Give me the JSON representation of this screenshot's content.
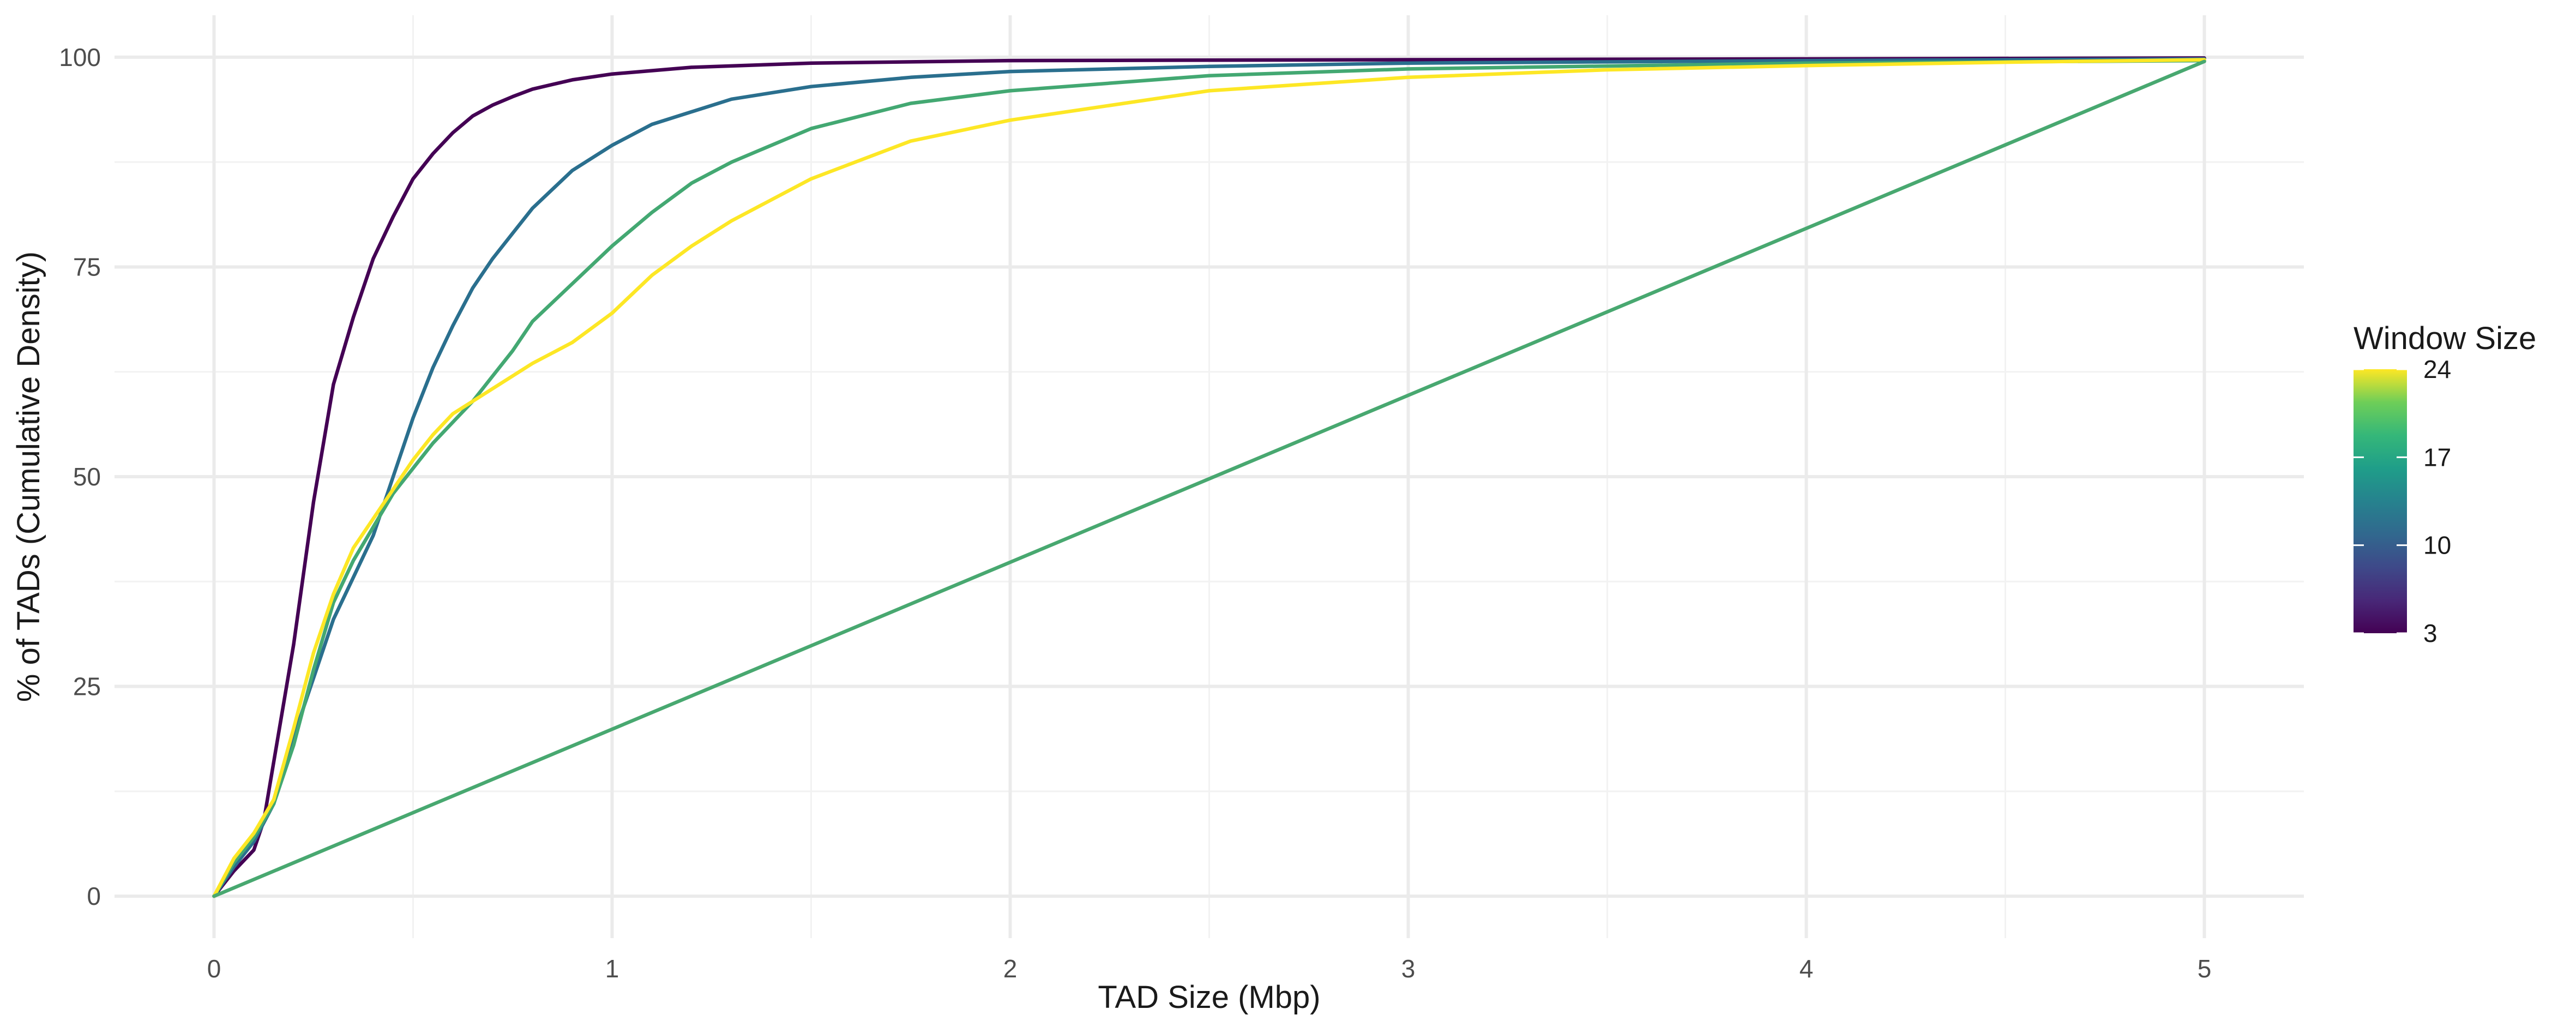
{
  "chart_data": {
    "type": "line",
    "xlabel": "TAD Size (Mbp)",
    "ylabel": "% of TADs (Cumulative Density)",
    "xlim": [
      -0.25,
      5.25
    ],
    "ylim": [
      -5,
      105
    ],
    "x_ticks": [
      0,
      1,
      2,
      3,
      4,
      5
    ],
    "y_ticks": [
      0,
      25,
      50,
      75,
      100
    ],
    "grid": true,
    "legend": {
      "title": "Window Size",
      "placement": "right",
      "type": "colorbar",
      "range": [
        3,
        24
      ],
      "ticks": [
        3,
        10,
        17,
        24
      ]
    },
    "series": [
      {
        "window": 3,
        "color": "#440154",
        "x": [
          0,
          0.05,
          0.1,
          0.125,
          0.15,
          0.2,
          0.25,
          0.3,
          0.35,
          0.4,
          0.45,
          0.5,
          0.55,
          0.6,
          0.65,
          0.7,
          0.75,
          0.8,
          0.9,
          1.0,
          1.2,
          1.5,
          2.0,
          3.0,
          4.0,
          5.0
        ],
        "y": [
          0,
          3,
          5.5,
          9,
          16,
          30,
          47,
          61,
          69,
          76,
          81,
          85.5,
          88.5,
          91,
          93,
          94.3,
          95.3,
          96.2,
          97.3,
          98,
          98.8,
          99.3,
          99.6,
          99.7,
          99.8,
          99.9
        ]
      },
      {
        "window": 10,
        "color": "#2a6f8e",
        "x": [
          0,
          0.05,
          0.1,
          0.15,
          0.2,
          0.25,
          0.3,
          0.35,
          0.4,
          0.45,
          0.5,
          0.55,
          0.6,
          0.65,
          0.7,
          0.75,
          0.8,
          0.9,
          1.0,
          1.1,
          1.2,
          1.3,
          1.5,
          1.75,
          2.0,
          2.5,
          3.0,
          4.0,
          5.0
        ],
        "y": [
          0,
          3.5,
          6.5,
          11,
          19,
          26,
          33,
          38,
          43,
          50,
          57,
          63,
          68,
          72.5,
          76,
          79,
          82,
          86.5,
          89.5,
          92,
          93.5,
          95,
          96.5,
          97.6,
          98.3,
          98.9,
          99.3,
          99.6,
          99.8
        ]
      },
      {
        "window": 17,
        "color": "#43a872",
        "x": [
          0,
          0.05,
          0.1,
          0.15,
          0.2,
          0.25,
          0.3,
          0.35,
          0.4,
          0.45,
          0.5,
          0.55,
          0.6,
          0.65,
          0.7,
          0.75,
          0.8,
          0.9,
          1.0,
          1.1,
          1.2,
          1.3,
          1.5,
          1.75,
          2.0,
          2.5,
          3.0,
          4.0,
          5.0
        ],
        "y": [
          0,
          4,
          7,
          11,
          18,
          27,
          35,
          40,
          44,
          48,
          51,
          54,
          56.5,
          59,
          62,
          65,
          68.5,
          73,
          77.5,
          81.5,
          85,
          87.5,
          91.5,
          94.5,
          96,
          97.8,
          98.6,
          99.3,
          99.6
        ]
      },
      {
        "window": 24,
        "color": "#fde725",
        "x": [
          0,
          0.05,
          0.1,
          0.15,
          0.2,
          0.25,
          0.3,
          0.35,
          0.4,
          0.45,
          0.5,
          0.55,
          0.6,
          0.65,
          0.7,
          0.75,
          0.8,
          0.9,
          1.0,
          1.1,
          1.2,
          1.3,
          1.5,
          1.75,
          2.0,
          2.5,
          3.0,
          3.5,
          4.0,
          4.5,
          5.0
        ],
        "y": [
          0,
          4.5,
          7.5,
          11.5,
          20,
          29,
          36,
          41.5,
          45,
          48.5,
          52,
          55,
          57.5,
          59,
          60.5,
          62,
          63.5,
          66,
          69.5,
          74,
          77.5,
          80.5,
          85.5,
          90,
          92.5,
          96,
          97.6,
          98.5,
          99.0,
          99.4,
          99.7
        ]
      },
      {
        "window": 17,
        "color": "#48a870",
        "x": [
          0,
          5.0
        ],
        "y": [
          0,
          99.5
        ]
      }
    ]
  }
}
